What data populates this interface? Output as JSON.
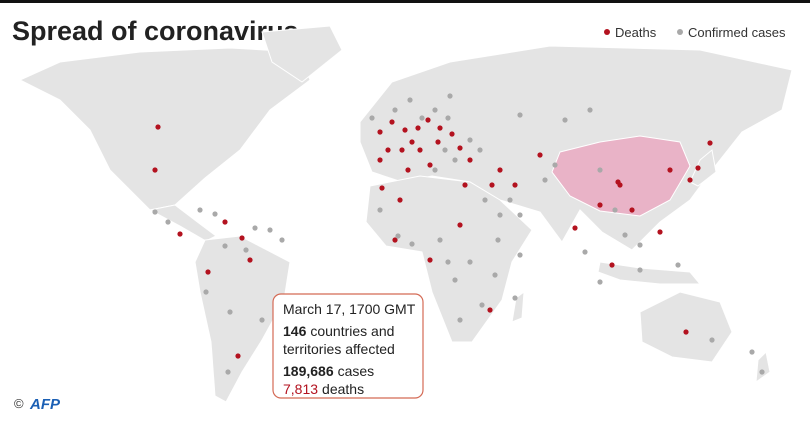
{
  "header": {
    "title": "Spread of coronavirus"
  },
  "legend": {
    "deaths": "Deaths",
    "confirmed": "Confirmed cases"
  },
  "info": {
    "date": "March 17, 1700 GMT",
    "countries_count": "146",
    "countries_line1": "countries and",
    "countries_line2": "territories affected",
    "cases_count": "189,686",
    "cases_label": "cases",
    "deaths_count": "7,813",
    "deaths_label": "deaths"
  },
  "credit": {
    "symbol": "©",
    "agency": "AFP"
  }
}
